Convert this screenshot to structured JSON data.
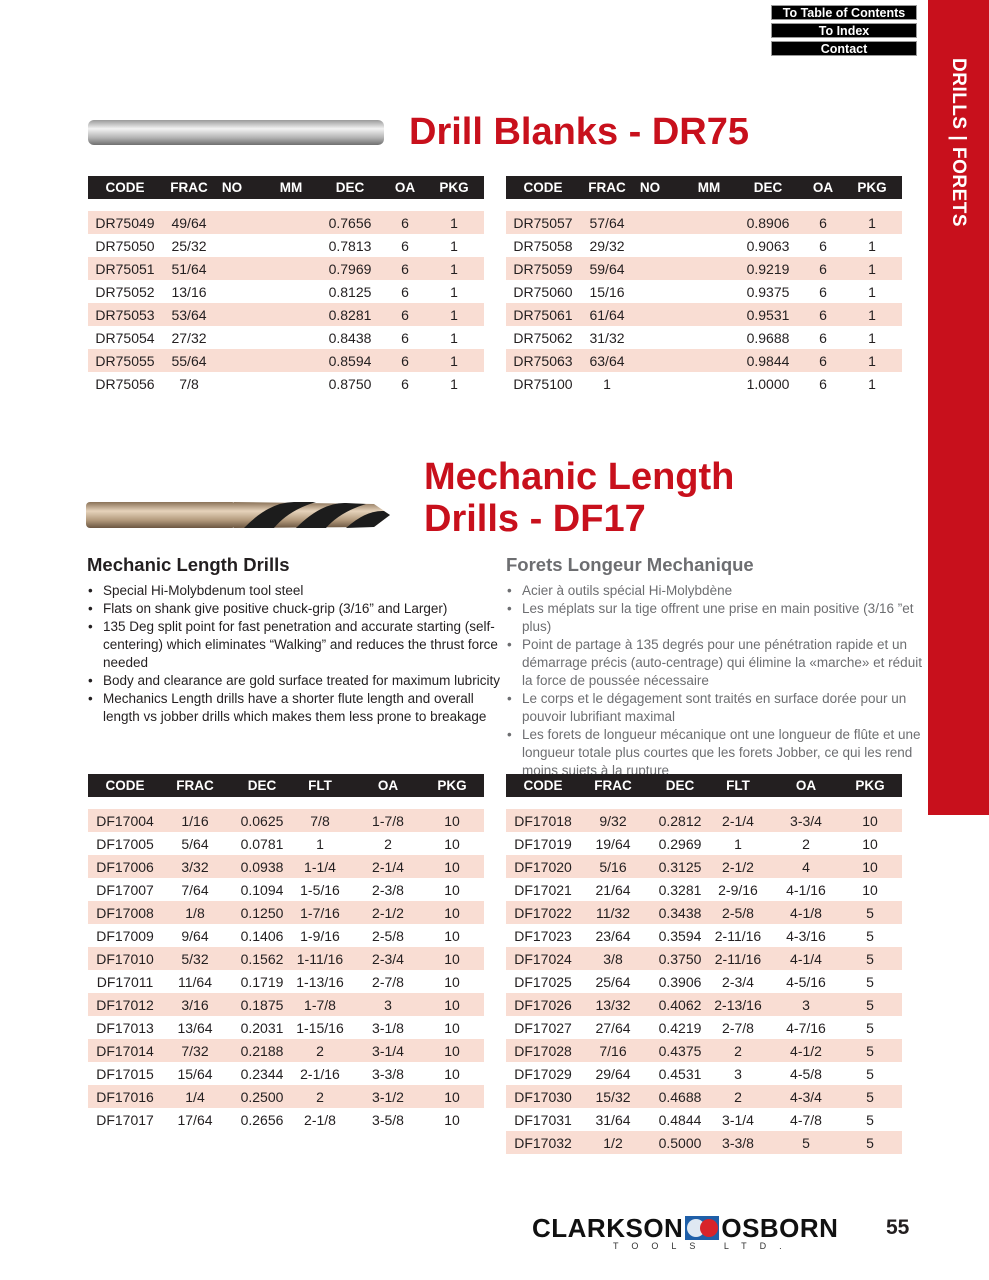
{
  "nav": {
    "toc": "To Table of Contents",
    "index": "To Index",
    "contact": "Contact"
  },
  "sidebar": {
    "label": "DRILLS  |  FORETS",
    "color": "#c8101c"
  },
  "dr75": {
    "title": "Drill Blanks - DR75",
    "columns": [
      "CODE",
      "FRAC",
      "NO",
      "MM",
      "DEC",
      "OA",
      "PKG"
    ],
    "left_rows": [
      [
        "DR75049",
        "49/64",
        "",
        "",
        "0.7656",
        "6",
        "1"
      ],
      [
        "DR75050",
        "25/32",
        "",
        "",
        "0.7813",
        "6",
        "1"
      ],
      [
        "DR75051",
        "51/64",
        "",
        "",
        "0.7969",
        "6",
        "1"
      ],
      [
        "DR75052",
        "13/16",
        "",
        "",
        "0.8125",
        "6",
        "1"
      ],
      [
        "DR75053",
        "53/64",
        "",
        "",
        "0.8281",
        "6",
        "1"
      ],
      [
        "DR75054",
        "27/32",
        "",
        "",
        "0.8438",
        "6",
        "1"
      ],
      [
        "DR75055",
        "55/64",
        "",
        "",
        "0.8594",
        "6",
        "1"
      ],
      [
        "DR75056",
        "7/8",
        "",
        "",
        "0.8750",
        "6",
        "1"
      ]
    ],
    "right_rows": [
      [
        "DR75057",
        "57/64",
        "",
        "",
        "0.8906",
        "6",
        "1"
      ],
      [
        "DR75058",
        "29/32",
        "",
        "",
        "0.9063",
        "6",
        "1"
      ],
      [
        "DR75059",
        "59/64",
        "",
        "",
        "0.9219",
        "6",
        "1"
      ],
      [
        "DR75060",
        "15/16",
        "",
        "",
        "0.9375",
        "6",
        "1"
      ],
      [
        "DR75061",
        "61/64",
        "",
        "",
        "0.9531",
        "6",
        "1"
      ],
      [
        "DR75062",
        "31/32",
        "",
        "",
        "0.9688",
        "6",
        "1"
      ],
      [
        "DR75063",
        "63/64",
        "",
        "",
        "0.9844",
        "6",
        "1"
      ],
      [
        "DR75100",
        "1",
        "",
        "",
        "1.0000",
        "6",
        "1"
      ]
    ]
  },
  "df17": {
    "title_line1": "Mechanic Length",
    "title_line2": "Drills - DF17",
    "en_heading": "Mechanic Length Drills",
    "en_bullets": [
      "Special Hi-Molybdenum tool steel",
      "Flats on shank give positive chuck-grip (3/16” and Larger)",
      "135 Deg split point for fast penetration and accurate starting (self-centering) which eliminates “Walking” and reduces the thrust force needed",
      "Body and clearance are gold surface treated for maximum lubricity",
      "Mechanics Length drills have a shorter flute length and overall length vs jobber drills which makes them less prone to breakage"
    ],
    "fr_heading": "Forets Longeur Mechanique",
    "fr_bullets": [
      "Acier à outils spécial Hi-Molybdène",
      "Les méplats sur la tige offrent une prise en main positive (3/16 ”et plus)",
      "Point de partage à 135 degrés pour une pénétration rapide et un démarrage précis (auto-centrage) qui élimine la «marche» et réduit la force de poussée nécessaire",
      "Le corps et le dégagement sont traités en surface dorée pour un pouvoir lubrifiant maximal",
      "Les forets de longueur mécanique ont une longueur de flûte et une longueur totale plus courtes que les forets Jobber, ce qui les rend moins sujets à la rupture"
    ],
    "columns": [
      "CODE",
      "FRAC",
      "DEC",
      "FLT",
      "OA",
      "PKG"
    ],
    "left_rows": [
      [
        "DF17004",
        "1/16",
        "0.0625",
        "7/8",
        "1-7/8",
        "10"
      ],
      [
        "DF17005",
        "5/64",
        "0.0781",
        "1",
        "2",
        "10"
      ],
      [
        "DF17006",
        "3/32",
        "0.0938",
        "1-1/4",
        "2-1/4",
        "10"
      ],
      [
        "DF17007",
        "7/64",
        "0.1094",
        "1-5/16",
        "2-3/8",
        "10"
      ],
      [
        "DF17008",
        "1/8",
        "0.1250",
        "1-7/16",
        "2-1/2",
        "10"
      ],
      [
        "DF17009",
        "9/64",
        "0.1406",
        "1-9/16",
        "2-5/8",
        "10"
      ],
      [
        "DF17010",
        "5/32",
        "0.1562",
        "1-11/16",
        "2-3/4",
        "10"
      ],
      [
        "DF17011",
        "11/64",
        "0.1719",
        "1-13/16",
        "2-7/8",
        "10"
      ],
      [
        "DF17012",
        "3/16",
        "0.1875",
        "1-7/8",
        "3",
        "10"
      ],
      [
        "DF17013",
        "13/64",
        "0.2031",
        "1-15/16",
        "3-1/8",
        "10"
      ],
      [
        "DF17014",
        "7/32",
        "0.2188",
        "2",
        "3-1/4",
        "10"
      ],
      [
        "DF17015",
        "15/64",
        "0.2344",
        "2-1/16",
        "3-3/8",
        "10"
      ],
      [
        "DF17016",
        "1/4",
        "0.2500",
        "2",
        "3-1/2",
        "10"
      ],
      [
        "DF17017",
        "17/64",
        "0.2656",
        "2-1/8",
        "3-5/8",
        "10"
      ]
    ],
    "right_rows": [
      [
        "DF17018",
        "9/32",
        "0.2812",
        "2-1/4",
        "3-3/4",
        "10"
      ],
      [
        "DF17019",
        "19/64",
        "0.2969",
        "1",
        "2",
        "10"
      ],
      [
        "DF17020",
        "5/16",
        "0.3125",
        "2-1/2",
        "4",
        "10"
      ],
      [
        "DF17021",
        "21/64",
        "0.3281",
        "2-9/16",
        "4-1/16",
        "10"
      ],
      [
        "DF17022",
        "11/32",
        "0.3438",
        "2-5/8",
        "4-1/8",
        "5"
      ],
      [
        "DF17023",
        "23/64",
        "0.3594",
        "2-11/16",
        "4-3/16",
        "5"
      ],
      [
        "DF17024",
        "3/8",
        "0.3750",
        "2-11/16",
        "4-1/4",
        "5"
      ],
      [
        "DF17025",
        "25/64",
        "0.3906",
        "2-3/4",
        "4-5/16",
        "5"
      ],
      [
        "DF17026",
        "13/32",
        "0.4062",
        "2-13/16",
        "3",
        "5"
      ],
      [
        "DF17027",
        "27/64",
        "0.4219",
        "2-7/8",
        "4-7/16",
        "5"
      ],
      [
        "DF17028",
        "7/16",
        "0.4375",
        "2",
        "4-1/2",
        "5"
      ],
      [
        "DF17029",
        "29/64",
        "0.4531",
        "3",
        "4-5/8",
        "5"
      ],
      [
        "DF17030",
        "15/32",
        "0.4688",
        "2",
        "4-3/4",
        "5"
      ],
      [
        "DF17031",
        "31/64",
        "0.4844",
        "3-1/4",
        "4-7/8",
        "5"
      ],
      [
        "DF17032",
        "1/2",
        "0.5000",
        "3-3/8",
        "5",
        "5"
      ]
    ]
  },
  "footer": {
    "logo": "CLARKSON OSBORN",
    "logo_sub": "TOOLS LTD.",
    "page_number": "55"
  },
  "colors": {
    "accent_red": "#c8101c",
    "row_alt": "#f9ddd3",
    "header_bg": "#231f20"
  }
}
